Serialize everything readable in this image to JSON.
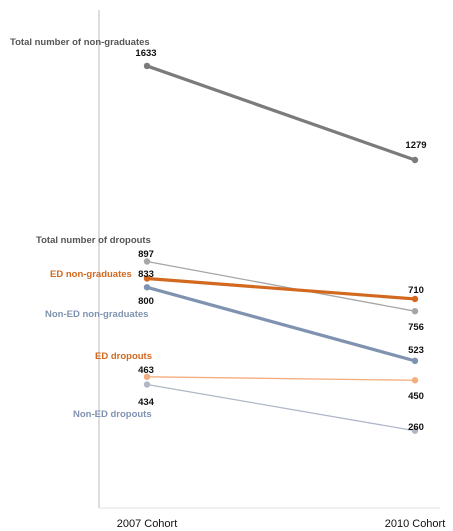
{
  "chart_data": {
    "type": "line",
    "title": "",
    "categories": [
      "2007 Cohort",
      "2010 Cohort"
    ],
    "series": [
      {
        "name": "Total number of non-graduates",
        "values": [
          1633,
          1279
        ],
        "color": "#7b7b7b"
      },
      {
        "name": "Total number of dropouts",
        "values": [
          897,
          710
        ],
        "color": "#a6a6a6"
      },
      {
        "name": "ED non-graduates",
        "values": [
          833,
          756
        ],
        "color": "#d2691e"
      },
      {
        "name": "Non-ED non-graduates",
        "values": [
          800,
          523
        ],
        "color": "#7f93b0"
      },
      {
        "name": "ED dropouts",
        "values": [
          463,
          450
        ],
        "color": "#f4ad7f"
      },
      {
        "name": "Non-ED dropouts",
        "values": [
          434,
          260
        ],
        "color": "#b0b8c8"
      }
    ],
    "grid": false,
    "legend": "none"
  }
}
